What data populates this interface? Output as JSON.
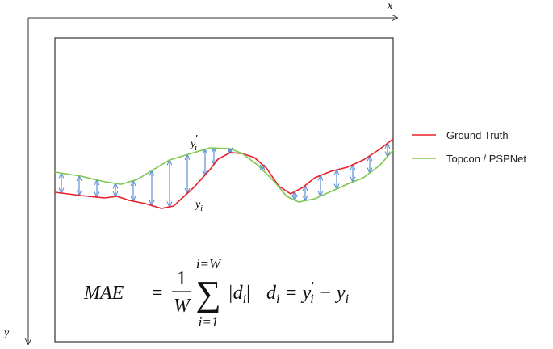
{
  "axes": {
    "x": "x",
    "y": "y"
  },
  "curve_labels": {
    "predicted": {
      "base": "y",
      "prime": "′",
      "sub": "i"
    },
    "truth": {
      "base": "y",
      "sub": "i"
    }
  },
  "legend": [
    {
      "label": "Ground Truth"
    },
    {
      "label": "Topcon / PSPNet"
    }
  ],
  "formula": {
    "lhs": "MAE",
    "equals": "=",
    "numerator": "1",
    "denominator": "W",
    "sum_symbol": "∑",
    "sum_upper": "i=W",
    "sum_lower": "i=1",
    "term_open": "|d",
    "term_sub": "i",
    "term_close": "|",
    "d": "d",
    "d_sub": "i",
    "d_equals": " = y",
    "d_prime": "′",
    "d_prime_sub": "i",
    "minus": " − y",
    "minus_sub": "i"
  }
}
